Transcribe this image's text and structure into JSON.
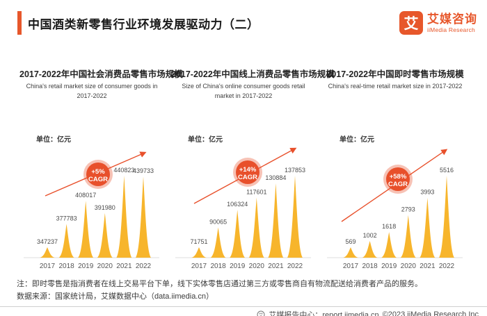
{
  "header": {
    "title": "中国酒类新零售行业环境发展驱动力（二）",
    "logo": {
      "glyph": "艾",
      "name_cn": "艾媒咨询",
      "name_en": "iiMedia Research"
    }
  },
  "colors": {
    "accent": "#E7572B",
    "gold": "#F7B52C",
    "trend": "#E8502B"
  },
  "chart_data": [
    {
      "type": "bar",
      "title": "2017-2022年中国社会消费品零售市场规模",
      "subtitle": "China's retail market size of consumer goods in 2017-2022",
      "unit": "单位：亿元",
      "categories": [
        "2017",
        "2018",
        "2019",
        "2020",
        "2021",
        "2022"
      ],
      "values": [
        347237,
        377783,
        408017,
        391980,
        440823,
        439733
      ],
      "cagr": "+5%",
      "cagr_label": "CAGR",
      "bar_color": "#F7B52C",
      "trend_color": "#E8502B",
      "grid": false,
      "legend": "none"
    },
    {
      "type": "bar",
      "title": "2017-2022年中国线上消费品零售市场规模",
      "subtitle": "Size of China's online consumer goods retail market in 2017-2022",
      "unit": "单位：亿元",
      "categories": [
        "2017",
        "2018",
        "2019",
        "2020",
        "2021",
        "2022"
      ],
      "values": [
        71751,
        90065,
        106324,
        117601,
        130884,
        137853
      ],
      "cagr": "+14%",
      "cagr_label": "CAGR",
      "bar_color": "#F7B52C",
      "trend_color": "#E8502B",
      "grid": false,
      "legend": "none"
    },
    {
      "type": "bar",
      "title": "2017-2022年中国即时零售市场规模",
      "subtitle": "China's real-time retail market size in 2017-2022",
      "unit": "单位：亿元",
      "categories": [
        "2017",
        "2018",
        "2019",
        "2020",
        "2021",
        "2022"
      ],
      "values": [
        569,
        1002,
        1618,
        2793,
        3993,
        5516
      ],
      "cagr": "+58%",
      "cagr_label": "CAGR",
      "bar_color": "#F7B52C",
      "trend_color": "#E8502B",
      "grid": false,
      "legend": "none"
    }
  ],
  "notes": {
    "note_line": "注：即时零售是指消费者在线上交易平台下单，线下实体零售店通过第三方或零售商自有物流配送给消费者产品的服务。",
    "source_line": "数据来源：国家统计局，艾媒数据中心（data.iimedia.cn）"
  },
  "footer": {
    "report_center": "艾媒报告中心：report.iimedia.cn",
    "copyright": "©2023  iiMedia Research Inc"
  }
}
